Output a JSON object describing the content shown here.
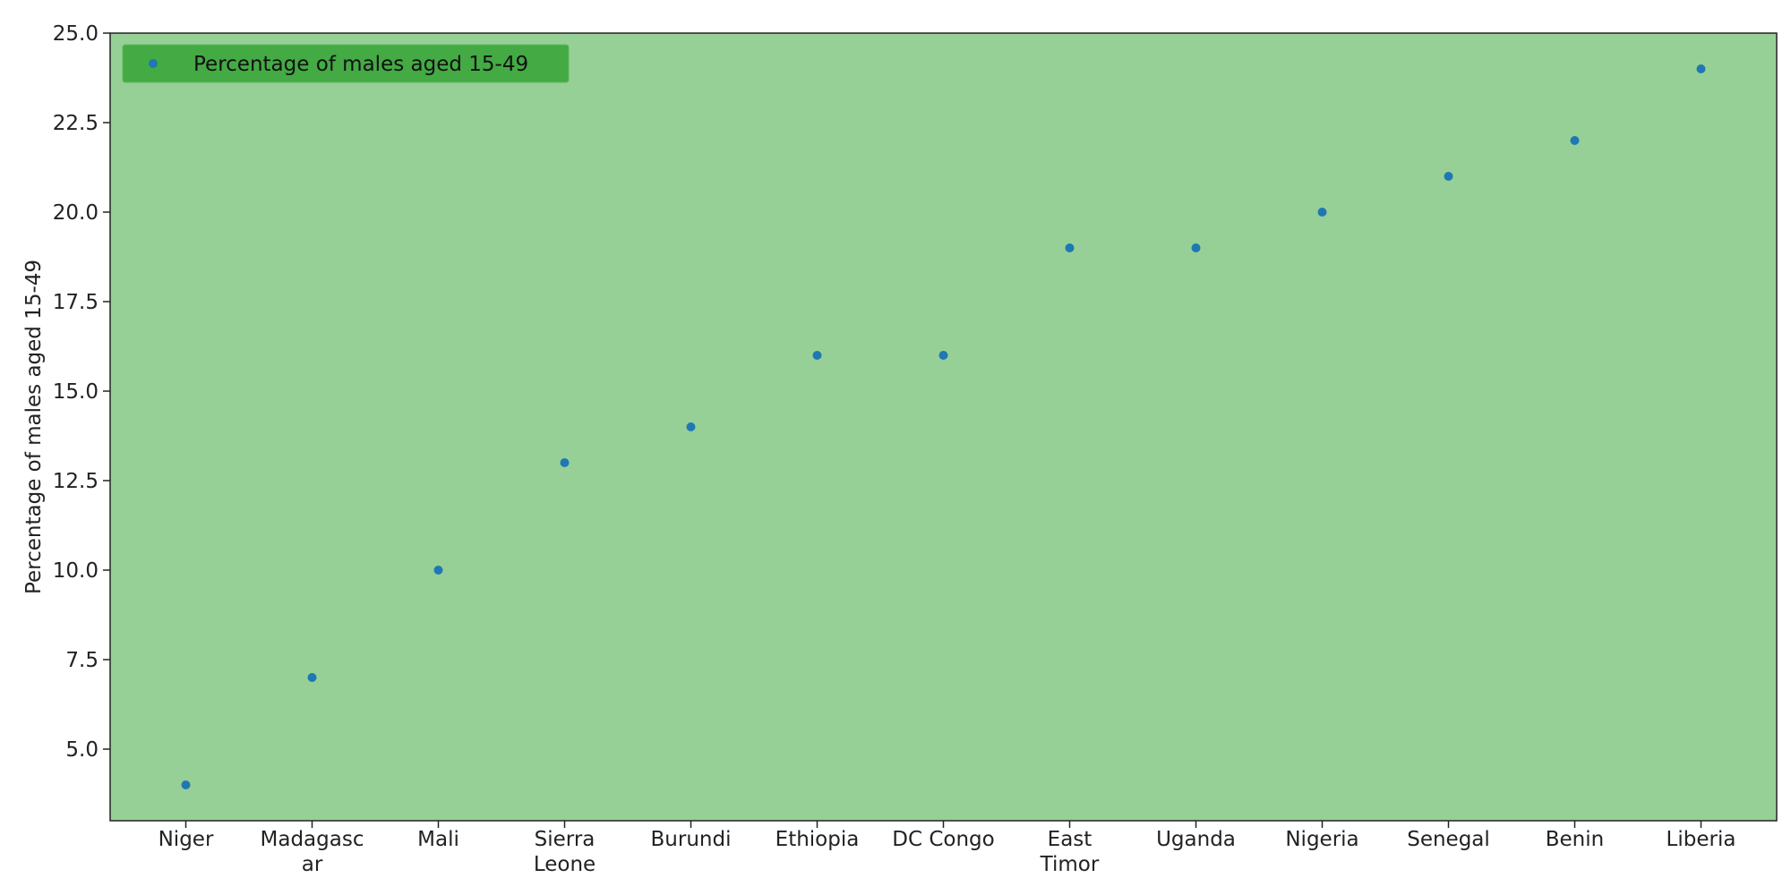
{
  "chart_data": {
    "type": "scatter",
    "title": "",
    "xlabel": "",
    "ylabel": "Percentage of males aged 15-49",
    "categories": [
      [
        "Niger"
      ],
      [
        "Madagasc",
        "ar"
      ],
      [
        "Mali"
      ],
      [
        "Sierra",
        "Leone"
      ],
      [
        "Burundi"
      ],
      [
        "Ethiopia"
      ],
      [
        "DC Congo"
      ],
      [
        "East",
        "Timor"
      ],
      [
        "Uganda"
      ],
      [
        "Nigeria"
      ],
      [
        "Senegal"
      ],
      [
        "Benin"
      ],
      [
        "Liberia"
      ]
    ],
    "series": [
      {
        "name": "Percentage of males aged 15-49",
        "values": [
          4,
          7,
          10,
          13,
          14,
          16,
          16,
          19,
          19,
          20,
          21,
          22,
          24
        ],
        "color": "#1f77b4"
      }
    ],
    "ylim": [
      3,
      25
    ],
    "yticks": [
      "5.0",
      "7.5",
      "10.0",
      "12.5",
      "15.0",
      "17.5",
      "20.0",
      "22.5",
      "25.0"
    ],
    "grid": false,
    "legend_position": "top-left",
    "plot_background": "#96d096",
    "legend_background": "#44aa44"
  }
}
